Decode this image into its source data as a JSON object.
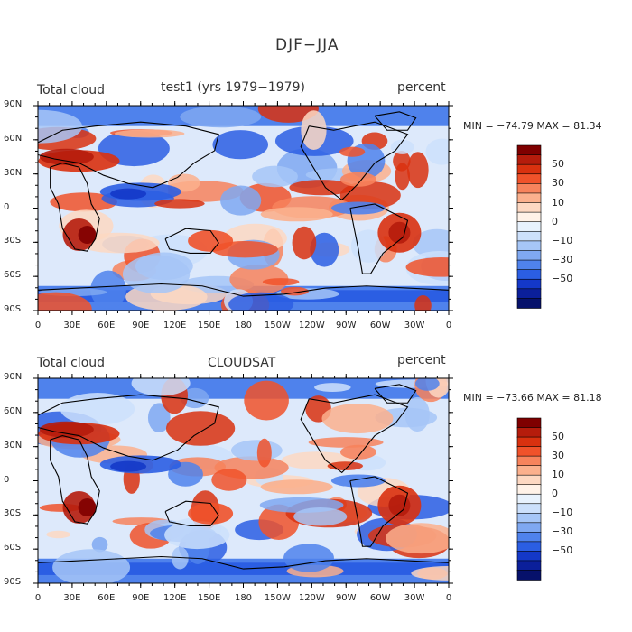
{
  "figure_title": "DJF−JJA",
  "x_ticks": [
    "0",
    "30E",
    "60E",
    "90E",
    "120E",
    "150E",
    "180",
    "150W",
    "120W",
    "90W",
    "60W",
    "30W",
    "0"
  ],
  "y_ticks": [
    "90N",
    "60N",
    "30N",
    "0",
    "30S",
    "60S",
    "90S"
  ],
  "colorbar_ticks": [
    "50",
    "30",
    "10",
    "0",
    "−10",
    "−30",
    "−50"
  ],
  "colorbar_colors": [
    "#7f0000",
    "#b51c0c",
    "#d9310f",
    "#f0522a",
    "#f7835c",
    "#fbb08d",
    "#fdd8c2",
    "#fff2e8",
    "#e8f2fd",
    "#cce0fb",
    "#a6c6f7",
    "#7fa8f1",
    "#4f82ec",
    "#2b5ee3",
    "#1438c8",
    "#0b1f9a",
    "#06116b"
  ],
  "panels": [
    {
      "id": "test1",
      "variable": "Total cloud",
      "center_title": "test1 (yrs 1979−1979)",
      "units": "percent",
      "stats": "MIN = −74.79 MAX =  81.34",
      "min": -74.79,
      "max": 81.34
    },
    {
      "id": "cloudsat",
      "variable": "Total cloud",
      "center_title": "CLOUDSAT",
      "units": "percent",
      "stats": "MIN = −73.66 MAX =  81.18",
      "min": -73.66,
      "max": 81.18
    }
  ]
}
